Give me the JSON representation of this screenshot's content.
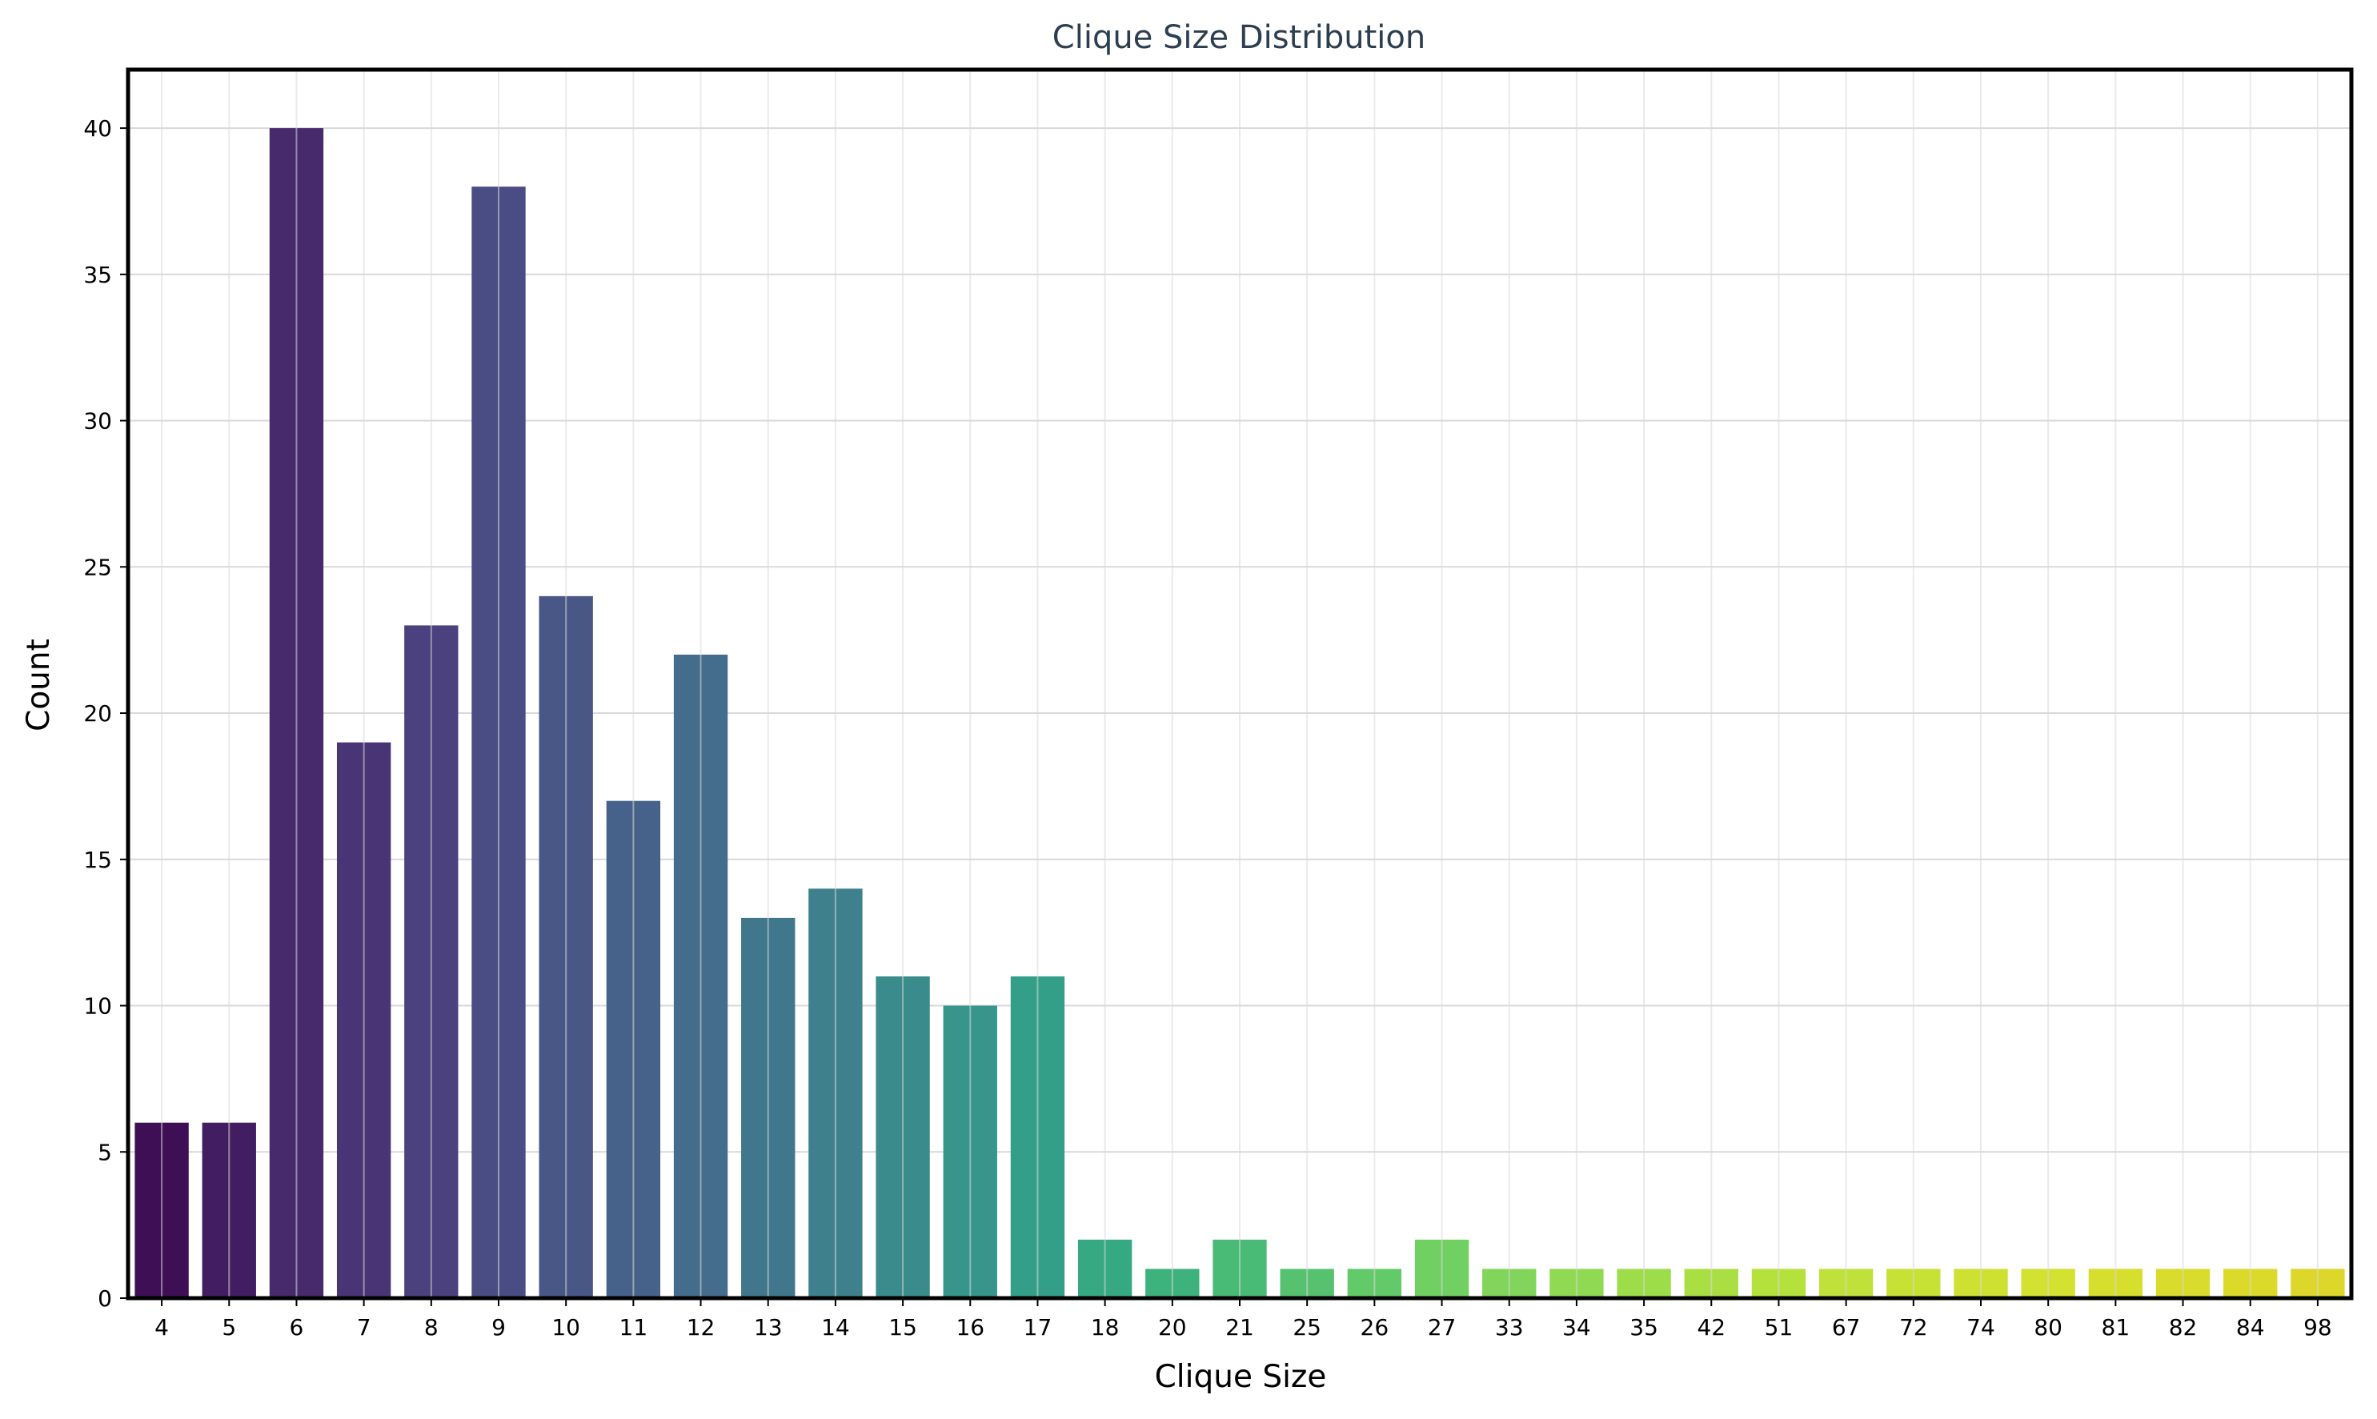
{
  "chart_data": {
    "type": "bar",
    "title": "Clique Size Distribution",
    "xlabel": "Clique Size",
    "ylabel": "Count",
    "categories": [
      "4",
      "5",
      "6",
      "7",
      "8",
      "9",
      "10",
      "11",
      "12",
      "13",
      "14",
      "15",
      "16",
      "17",
      "18",
      "20",
      "21",
      "25",
      "26",
      "27",
      "33",
      "34",
      "35",
      "42",
      "51",
      "67",
      "72",
      "74",
      "80",
      "81",
      "82",
      "84",
      "98"
    ],
    "values": [
      6,
      6,
      40,
      19,
      23,
      38,
      24,
      17,
      22,
      13,
      14,
      11,
      10,
      11,
      2,
      1,
      2,
      1,
      1,
      2,
      1,
      1,
      1,
      1,
      1,
      1,
      1,
      1,
      1,
      1,
      1,
      1,
      1
    ],
    "ylim": [
      0,
      42
    ],
    "yticks": [
      0,
      5,
      10,
      15,
      20,
      25,
      30,
      35,
      40
    ],
    "grid": true,
    "colormap": "viridis",
    "bar_colors": [
      "#3f0f55",
      "#431d61",
      "#462a6c",
      "#493576",
      "#4a417e",
      "#4a4c84",
      "#495786",
      "#47628a",
      "#446c8c",
      "#41778d",
      "#3e818d",
      "#3a8b8c",
      "#37958b",
      "#349f88",
      "#36a982",
      "#3eb27d",
      "#4aba77",
      "#56c270",
      "#62ca68",
      "#70d061",
      "#80d55a",
      "#8fda52",
      "#9ddd4a",
      "#aadf43",
      "#b5e13d",
      "#bfe139",
      "#c7e135",
      "#cee133",
      "#d3e131",
      "#d6de2e",
      "#d9dc2c",
      "#dbda2b",
      "#dcd72a"
    ],
    "frame_color": "#000000",
    "grid_color": "#d9d9d9"
  }
}
